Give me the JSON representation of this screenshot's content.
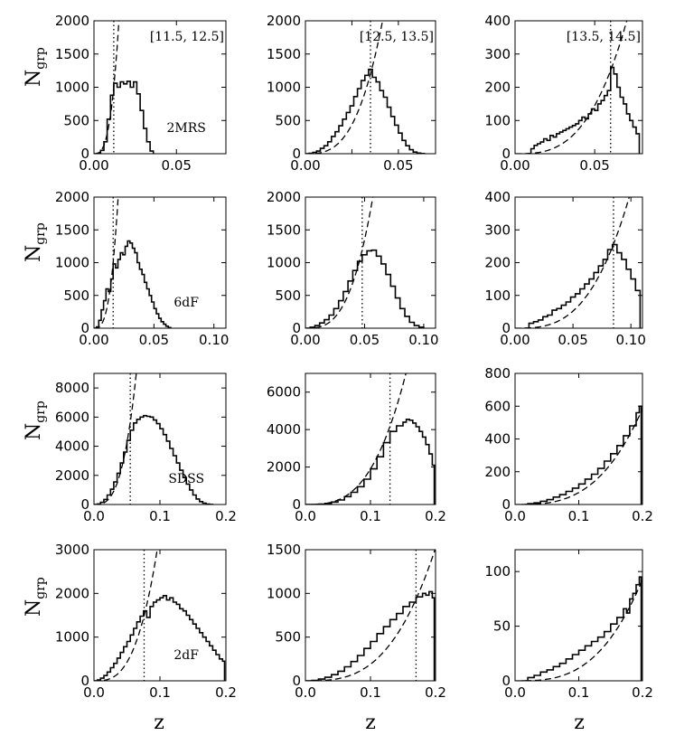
{
  "figure": {
    "ylabel": {
      "main": "N",
      "sub": "grp"
    },
    "xlabel": "z"
  },
  "chart_data": [
    {
      "row": 0,
      "col": 0,
      "type": "line",
      "title": "",
      "survey_label": "2MRS",
      "range_label": "[11.5, 12.5]",
      "xlim": [
        0,
        0.08
      ],
      "ylim": [
        0,
        2000
      ],
      "xticks": [
        0,
        0.05
      ],
      "xtick_labels": [
        "0.00",
        "0.05"
      ],
      "yticks": [
        0,
        500,
        1000,
        1500,
        2000
      ],
      "ytick_labels": [
        "0",
        "500",
        "1000",
        "1500",
        "2000"
      ],
      "zcut": 0.012,
      "fit": {
        "k": 580000000,
        "p": 3
      },
      "hist": {
        "x": [
          0,
          0.002,
          0.004,
          0.006,
          0.008,
          0.01,
          0.012,
          0.014,
          0.016,
          0.018,
          0.02,
          0.022,
          0.024,
          0.026,
          0.028,
          0.03,
          0.032,
          0.034,
          0.036
        ],
        "y": [
          0,
          5,
          50,
          180,
          520,
          880,
          1060,
          1000,
          1080,
          1050,
          1090,
          1000,
          1080,
          900,
          650,
          380,
          180,
          40,
          0
        ]
      }
    },
    {
      "row": 0,
      "col": 1,
      "type": "line",
      "title": "",
      "survey_label": "",
      "range_label": "[12.5, 13.5]",
      "xlim": [
        0,
        0.07
      ],
      "ylim": [
        0,
        2000
      ],
      "xticks": [
        0,
        0.025,
        0.05
      ],
      "xtick_labels": [
        "0.00",
        "",
        "0.05"
      ],
      "yticks": [
        0,
        500,
        1000,
        1500,
        2000
      ],
      "ytick_labels": [
        "0",
        "500",
        "1000",
        "1500",
        "2000"
      ],
      "zcut": 0.035,
      "fit": {
        "k": 28000000,
        "p": 3
      },
      "hist": {
        "x": [
          0,
          0.002,
          0.004,
          0.006,
          0.008,
          0.01,
          0.012,
          0.014,
          0.016,
          0.018,
          0.02,
          0.022,
          0.024,
          0.026,
          0.028,
          0.03,
          0.032,
          0.034,
          0.036,
          0.038,
          0.04,
          0.042,
          0.044,
          0.046,
          0.048,
          0.05,
          0.052,
          0.054,
          0.056,
          0.058,
          0.06,
          0.062,
          0.064
        ],
        "y": [
          0,
          5,
          20,
          40,
          80,
          120,
          180,
          260,
          330,
          420,
          520,
          620,
          720,
          860,
          980,
          1100,
          1180,
          1270,
          1150,
          1080,
          950,
          850,
          700,
          560,
          430,
          310,
          200,
          120,
          60,
          25,
          10,
          3,
          0
        ]
      }
    },
    {
      "row": 0,
      "col": 2,
      "type": "line",
      "title": "",
      "survey_label": "",
      "range_label": "[13.5, 14.5]",
      "xlim": [
        0,
        0.08
      ],
      "ylim": [
        0,
        400
      ],
      "xticks": [
        0,
        0.05
      ],
      "xtick_labels": [
        "0.00",
        "0.05"
      ],
      "yticks": [
        0,
        100,
        200,
        300,
        400
      ],
      "ytick_labels": [
        "0",
        "100",
        "200",
        "300",
        "400"
      ],
      "zcut": 0.06,
      "fit": {
        "k": 1160000,
        "p": 3
      },
      "hist": {
        "x": [
          0.008,
          0.01,
          0.012,
          0.014,
          0.016,
          0.018,
          0.02,
          0.022,
          0.024,
          0.026,
          0.028,
          0.03,
          0.032,
          0.034,
          0.036,
          0.038,
          0.04,
          0.042,
          0.044,
          0.046,
          0.048,
          0.05,
          0.052,
          0.054,
          0.056,
          0.058,
          0.06,
          0.062,
          0.064,
          0.066,
          0.068,
          0.07,
          0.072,
          0.074,
          0.076,
          0.078
        ],
        "y": [
          0,
          15,
          25,
          30,
          35,
          45,
          40,
          55,
          50,
          60,
          65,
          70,
          75,
          80,
          85,
          90,
          100,
          110,
          105,
          120,
          135,
          130,
          150,
          160,
          175,
          190,
          260,
          240,
          200,
          170,
          150,
          120,
          100,
          80,
          60,
          0
        ]
      }
    },
    {
      "row": 1,
      "col": 0,
      "type": "line",
      "title": "",
      "survey_label": "6dF",
      "range_label": "",
      "xlim": [
        0,
        0.11
      ],
      "ylim": [
        0,
        2000
      ],
      "xticks": [
        0,
        0.05,
        0.1
      ],
      "xtick_labels": [
        "0.00",
        "0.05",
        "0.10"
      ],
      "yticks": [
        0,
        500,
        1000,
        1500,
        2000
      ],
      "ytick_labels": [
        "0",
        "500",
        "1000",
        "1500",
        "2000"
      ],
      "zcut": 0.016,
      "fit": {
        "k": 245000000,
        "p": 3
      },
      "hist": {
        "x": [
          0,
          0.002,
          0.004,
          0.006,
          0.008,
          0.01,
          0.012,
          0.014,
          0.016,
          0.018,
          0.02,
          0.022,
          0.024,
          0.026,
          0.028,
          0.03,
          0.032,
          0.034,
          0.036,
          0.038,
          0.04,
          0.042,
          0.044,
          0.046,
          0.048,
          0.05,
          0.052,
          0.054,
          0.056,
          0.058,
          0.06,
          0.062,
          0.064
        ],
        "y": [
          0,
          20,
          120,
          280,
          420,
          600,
          560,
          750,
          980,
          920,
          1050,
          1150,
          1120,
          1250,
          1330,
          1300,
          1220,
          1150,
          1000,
          900,
          820,
          700,
          600,
          500,
          400,
          300,
          220,
          150,
          100,
          60,
          30,
          10,
          0
        ]
      }
    },
    {
      "row": 1,
      "col": 1,
      "type": "line",
      "title": "",
      "survey_label": "",
      "range_label": "",
      "xlim": [
        0,
        0.11
      ],
      "ylim": [
        0,
        2000
      ],
      "xticks": [
        0,
        0.05,
        0.1
      ],
      "xtick_labels": [
        "0.00",
        "0.05",
        "0.10"
      ],
      "yticks": [
        0,
        500,
        1000,
        1500,
        2000
      ],
      "ytick_labels": [
        "0",
        "500",
        "1000",
        "1500",
        "2000"
      ],
      "zcut": 0.048,
      "fit": {
        "k": 10800000,
        "p": 3
      },
      "hist": {
        "x": [
          0,
          0.004,
          0.008,
          0.012,
          0.016,
          0.02,
          0.024,
          0.028,
          0.032,
          0.036,
          0.04,
          0.044,
          0.048,
          0.052,
          0.056,
          0.06,
          0.064,
          0.068,
          0.072,
          0.076,
          0.08,
          0.084,
          0.088,
          0.092,
          0.096,
          0.1
        ],
        "y": [
          0,
          15,
          40,
          80,
          130,
          200,
          300,
          420,
          560,
          720,
          880,
          1020,
          1120,
          1180,
          1190,
          1100,
          980,
          820,
          640,
          460,
          300,
          180,
          90,
          40,
          15,
          0
        ]
      }
    },
    {
      "row": 1,
      "col": 2,
      "type": "line",
      "title": "",
      "survey_label": "",
      "range_label": "",
      "xlim": [
        0,
        0.11
      ],
      "ylim": [
        0,
        400
      ],
      "xticks": [
        0,
        0.05,
        0.1
      ],
      "xtick_labels": [
        "0.00",
        "0.05",
        "0.10"
      ],
      "yticks": [
        0,
        100,
        200,
        300,
        400
      ],
      "ytick_labels": [
        "0",
        "100",
        "200",
        "300",
        "400"
      ],
      "zcut": 0.085,
      "fit": {
        "k": 418000,
        "p": 3
      },
      "hist": {
        "x": [
          0.008,
          0.012,
          0.016,
          0.02,
          0.024,
          0.028,
          0.032,
          0.036,
          0.04,
          0.044,
          0.048,
          0.052,
          0.056,
          0.06,
          0.064,
          0.068,
          0.072,
          0.076,
          0.08,
          0.084,
          0.088,
          0.092,
          0.096,
          0.1,
          0.104,
          0.108
        ],
        "y": [
          0,
          15,
          20,
          25,
          35,
          40,
          55,
          60,
          70,
          80,
          95,
          105,
          120,
          135,
          150,
          170,
          190,
          210,
          240,
          255,
          230,
          210,
          180,
          150,
          115,
          0
        ]
      }
    },
    {
      "row": 2,
      "col": 0,
      "type": "line",
      "title": "",
      "survey_label": "SDSS",
      "range_label": "",
      "xlim": [
        0,
        0.2
      ],
      "ylim": [
        0,
        9000
      ],
      "xticks": [
        0,
        0.1,
        0.2
      ],
      "xtick_labels": [
        "0.0",
        "0.1",
        "0.2"
      ],
      "yticks": [
        0,
        2000,
        4000,
        6000,
        8000
      ],
      "ytick_labels": [
        "0",
        "2000",
        "4000",
        "6000",
        "8000"
      ],
      "zcut": 0.055,
      "fit": {
        "k": 34000000,
        "p": 3
      },
      "hist": {
        "x": [
          0,
          0.005,
          0.01,
          0.015,
          0.02,
          0.025,
          0.03,
          0.035,
          0.04,
          0.045,
          0.05,
          0.055,
          0.06,
          0.065,
          0.07,
          0.075,
          0.08,
          0.085,
          0.09,
          0.095,
          0.1,
          0.105,
          0.11,
          0.115,
          0.12,
          0.125,
          0.13,
          0.135,
          0.14,
          0.145,
          0.15,
          0.155,
          0.16,
          0.165,
          0.17,
          0.175,
          0.18
        ],
        "y": [
          0,
          40,
          150,
          350,
          650,
          1050,
          1550,
          2150,
          2850,
          3600,
          4400,
          5100,
          5600,
          5850,
          6000,
          6100,
          6050,
          6000,
          5800,
          5550,
          5200,
          4800,
          4350,
          3850,
          3350,
          2850,
          2350,
          1850,
          1400,
          1000,
          650,
          380,
          200,
          90,
          30,
          8,
          0
        ]
      }
    },
    {
      "row": 2,
      "col": 1,
      "type": "line",
      "title": "",
      "survey_label": "",
      "range_label": "",
      "xlim": [
        0,
        0.2
      ],
      "ylim": [
        0,
        7000
      ],
      "xticks": [
        0,
        0.1,
        0.2
      ],
      "xtick_labels": [
        "0.0",
        "0.1",
        "0.2"
      ],
      "yticks": [
        0,
        2000,
        4000,
        6000
      ],
      "ytick_labels": [
        "0",
        "2000",
        "4000",
        "6000"
      ],
      "zcut": 0.13,
      "fit": {
        "k": 1900000,
        "p": 3
      },
      "hist": {
        "x": [
          0,
          0.01,
          0.02,
          0.03,
          0.04,
          0.05,
          0.06,
          0.07,
          0.08,
          0.09,
          0.1,
          0.11,
          0.12,
          0.13,
          0.14,
          0.15,
          0.155,
          0.16,
          0.165,
          0.17,
          0.175,
          0.18,
          0.185,
          0.19,
          0.195,
          0.198
        ],
        "y": [
          0,
          5,
          20,
          60,
          130,
          240,
          420,
          650,
          950,
          1350,
          1900,
          2550,
          3300,
          3900,
          4200,
          4400,
          4550,
          4500,
          4350,
          4150,
          3900,
          3600,
          3200,
          2700,
          2100,
          0
        ]
      }
    },
    {
      "row": 2,
      "col": 2,
      "type": "line",
      "title": "",
      "survey_label": "",
      "range_label": "",
      "xlim": [
        0,
        0.2
      ],
      "ylim": [
        0,
        800
      ],
      "xticks": [
        0,
        0.1,
        0.2
      ],
      "xtick_labels": [
        "0.0",
        "0.1",
        "0.2"
      ],
      "yticks": [
        0,
        200,
        400,
        600,
        800
      ],
      "ytick_labels": [
        "0",
        "200",
        "400",
        "600",
        "800"
      ],
      "zcut": null,
      "fit": {
        "k": 73000,
        "p": 3
      },
      "hist": {
        "x": [
          0.01,
          0.02,
          0.03,
          0.04,
          0.05,
          0.06,
          0.07,
          0.08,
          0.09,
          0.1,
          0.11,
          0.12,
          0.13,
          0.14,
          0.15,
          0.16,
          0.17,
          0.18,
          0.19,
          0.195,
          0.198
        ],
        "y": [
          0,
          5,
          10,
          20,
          30,
          45,
          60,
          80,
          100,
          125,
          155,
          185,
          220,
          265,
          310,
          360,
          420,
          480,
          560,
          600,
          0
        ]
      }
    },
    {
      "row": 3,
      "col": 0,
      "type": "line",
      "title": "",
      "survey_label": "2dF",
      "range_label": "",
      "xlim": [
        0,
        0.2
      ],
      "ylim": [
        0,
        3000
      ],
      "xticks": [
        0,
        0.1,
        0.2
      ],
      "xtick_labels": [
        "0.0",
        "0.1",
        "0.2"
      ],
      "yticks": [
        0,
        1000,
        2000,
        3000
      ],
      "ytick_labels": [
        "0",
        "1000",
        "2000",
        "3000"
      ],
      "zcut": 0.076,
      "fit": {
        "k": 3400000,
        "p": 3
      },
      "hist": {
        "x": [
          0,
          0.005,
          0.01,
          0.015,
          0.02,
          0.025,
          0.03,
          0.035,
          0.04,
          0.045,
          0.05,
          0.055,
          0.06,
          0.065,
          0.07,
          0.075,
          0.08,
          0.085,
          0.09,
          0.095,
          0.1,
          0.105,
          0.11,
          0.115,
          0.12,
          0.125,
          0.13,
          0.135,
          0.14,
          0.145,
          0.15,
          0.155,
          0.16,
          0.165,
          0.17,
          0.175,
          0.18,
          0.185,
          0.19,
          0.195,
          0.198
        ],
        "y": [
          0,
          20,
          60,
          120,
          200,
          300,
          400,
          520,
          650,
          780,
          900,
          1050,
          1200,
          1350,
          1480,
          1600,
          1450,
          1700,
          1800,
          1850,
          1900,
          1950,
          1850,
          1900,
          1800,
          1750,
          1650,
          1600,
          1500,
          1400,
          1300,
          1200,
          1100,
          1000,
          900,
          800,
          700,
          600,
          500,
          450,
          0
        ]
      }
    },
    {
      "row": 3,
      "col": 1,
      "type": "line",
      "title": "",
      "survey_label": "",
      "range_label": "",
      "xlim": [
        0,
        0.2
      ],
      "ylim": [
        0,
        1500
      ],
      "xticks": [
        0,
        0.1,
        0.2
      ],
      "xtick_labels": [
        "0.0",
        "0.1",
        "0.2"
      ],
      "yticks": [
        0,
        500,
        1000,
        1500
      ],
      "ytick_labels": [
        "0",
        "500",
        "1000",
        "1500"
      ],
      "zcut": 0.17,
      "fit": {
        "k": 190000,
        "p": 3
      },
      "hist": {
        "x": [
          0,
          0.01,
          0.02,
          0.03,
          0.04,
          0.05,
          0.06,
          0.07,
          0.08,
          0.09,
          0.1,
          0.11,
          0.12,
          0.13,
          0.14,
          0.15,
          0.16,
          0.17,
          0.18,
          0.185,
          0.19,
          0.195,
          0.198
        ],
        "y": [
          0,
          5,
          20,
          40,
          70,
          110,
          160,
          220,
          290,
          370,
          450,
          540,
          620,
          700,
          770,
          850,
          900,
          960,
          1000,
          980,
          1020,
          950,
          0
        ]
      }
    },
    {
      "row": 3,
      "col": 2,
      "type": "line",
      "title": "",
      "survey_label": "",
      "range_label": "",
      "xlim": [
        0,
        0.2
      ],
      "ylim": [
        0,
        120
      ],
      "xticks": [
        0,
        0.1,
        0.2
      ],
      "xtick_labels": [
        "0.0",
        "0.1",
        "0.2"
      ],
      "yticks": [
        0,
        50,
        100
      ],
      "ytick_labels": [
        "0",
        "50",
        "100"
      ],
      "zcut": null,
      "fit": {
        "k": 11600,
        "p": 3
      },
      "hist": {
        "x": [
          0.01,
          0.02,
          0.03,
          0.04,
          0.05,
          0.06,
          0.07,
          0.08,
          0.09,
          0.1,
          0.11,
          0.12,
          0.13,
          0.14,
          0.15,
          0.16,
          0.17,
          0.175,
          0.18,
          0.185,
          0.19,
          0.195,
          0.198
        ],
        "y": [
          0,
          3,
          5,
          8,
          10,
          13,
          16,
          20,
          24,
          28,
          32,
          36,
          40,
          45,
          52,
          58,
          66,
          62,
          75,
          80,
          88,
          95,
          0
        ]
      }
    }
  ]
}
